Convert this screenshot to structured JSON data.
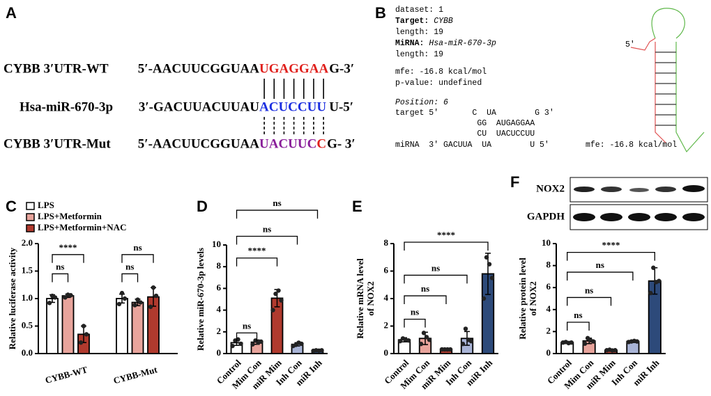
{
  "panel_labels": [
    "A",
    "B",
    "C",
    "D",
    "E",
    "F"
  ],
  "sequences": [
    {
      "name": "CYBB 3′UTR-WT",
      "parts": [
        "5′-AACUUCGGUAA",
        "UGAGGAA",
        "G-3′"
      ]
    },
    {
      "name": "Hsa-miR-670-3p",
      "parts": [
        "3′-GACUUACUUAU",
        "ACUCCUU",
        "U-5′"
      ]
    },
    {
      "name": "CYBB 3′UTR-Mut",
      "parts": [
        "5′-AACUUCGGUAA",
        "UACUUC",
        "C",
        "G- 3′"
      ]
    }
  ],
  "rnahybrid": {
    "dataset": "dataset: 1",
    "target_key": "Target:",
    "target": "CYBB",
    "length1": "length: 19",
    "mirna_key": "MiRNA:",
    "mirna": "Hsa-miR-670-3p",
    "length2": "length: 19",
    "mfe": "mfe: -16.8 kcal/mol",
    "pvalue": "p-value: undefined",
    "position": "Position: 6",
    "duplex": [
      "target 5'       C  UA        G 3'",
      "                 GG  AUGAGGAA",
      "                 CU  UACUCCUU",
      "miRNA  3' GACUUA  UA        U 5'"
    ],
    "structure_end": "5′",
    "structure_mfe": "mfe: -16.8 kcal/mol"
  },
  "blot": {
    "labels": [
      "NOX2",
      "GAPDH"
    ]
  },
  "chart_data": [
    {
      "type": "bar",
      "ylabel": [
        "Relative luciferase activity"
      ],
      "categories": [
        "CYBB-WT",
        "CYBB-Mut"
      ],
      "series": [
        {
          "name": "LPS",
          "color": "#ffffff",
          "values": [
            1.0,
            1.0
          ],
          "errors": [
            0.07,
            0.08
          ],
          "points": [
            [
              0.92,
              1.05,
              1.02
            ],
            [
              0.9,
              1.1,
              1.0
            ]
          ]
        },
        {
          "name": "LPS+Metformin",
          "color": "#e8a49c",
          "values": [
            1.05,
            0.93
          ],
          "errors": [
            0.03,
            0.06
          ],
          "points": [
            [
              1.02,
              1.07,
              1.06
            ],
            [
              0.88,
              0.98,
              0.93
            ]
          ]
        },
        {
          "name": "LPS+Metformin+NAC",
          "color": "#b03a2e",
          "values": [
            0.35,
            1.03
          ],
          "errors": [
            0.15,
            0.17
          ],
          "points": [
            [
              0.2,
              0.5,
              0.35
            ],
            [
              0.85,
              1.2,
              1.05
            ]
          ]
        }
      ],
      "ylim": [
        0,
        2
      ],
      "yticks": [
        {
          "value": 0,
          "label": "0.0"
        },
        {
          "value": 0.5,
          "label": "0.5"
        },
        {
          "value": 1,
          "label": "1.0"
        },
        {
          "value": 1.5,
          "label": "1.5"
        },
        {
          "value": 2,
          "label": "2.0"
        }
      ],
      "annotations": [
        {
          "label": "ns",
          "from": 0,
          "to": 1,
          "y": 1.45
        },
        {
          "label": "****",
          "from": 0,
          "to": 2,
          "y": 1.8
        },
        {
          "label": "ns",
          "from": 3,
          "to": 4,
          "y": 1.45
        },
        {
          "label": "ns",
          "from": 3,
          "to": 5,
          "y": 1.8
        }
      ]
    },
    {
      "type": "bar",
      "ylabel": [
        "Relative miR-670-3p levels"
      ],
      "categories": [
        "Control",
        "Mim Con",
        "miR Mim",
        "Inh Con",
        "miR Inh"
      ],
      "values": [
        1.0,
        1.05,
        5.1,
        0.85,
        0.28
      ],
      "errors": [
        0.25,
        0.2,
        0.8,
        0.15,
        0.05
      ],
      "points": [
        [
          0.7,
          1.2,
          1.3,
          0.9
        ],
        [
          0.85,
          1.2,
          1.0,
          1.1
        ],
        [
          4.0,
          5.5,
          5.8,
          4.9
        ],
        [
          0.7,
          0.8,
          1.0,
          0.9
        ],
        [
          0.25,
          0.3,
          0.27,
          0.3
        ]
      ],
      "colors": [
        "#ffffff",
        "#e8a49c",
        "#b03a2e",
        "#a9b4d6",
        "#2d4a7a"
      ],
      "ylim": [
        0,
        10
      ],
      "yticks": [
        0,
        2,
        4,
        6,
        8,
        10
      ],
      "annotations": [
        {
          "label": "ns",
          "from": 0,
          "to": 1,
          "y": 1.9
        },
        {
          "label": "****",
          "from": 0,
          "to": 2,
          "y": 8.8
        },
        {
          "label": "ns",
          "from": 0,
          "to": 3,
          "y": 10.8
        },
        {
          "label": "ns",
          "from": 0,
          "to": 4,
          "y": 13.2
        }
      ]
    },
    {
      "type": "bar",
      "ylabel": [
        "Relative mRNA level",
        "of NOX2"
      ],
      "categories": [
        "Control",
        "Mim Con",
        "miR Mim",
        "Inh Con",
        "miR Inh"
      ],
      "values": [
        1.0,
        1.1,
        0.3,
        1.1,
        5.8
      ],
      "errors": [
        0.15,
        0.45,
        0.05,
        0.5,
        1.5
      ],
      "points": [
        [
          0.9,
          1.1,
          1.0,
          0.95
        ],
        [
          0.7,
          1.5,
          1.2,
          1.0
        ],
        [
          0.3,
          0.3,
          0.3,
          0.3
        ],
        [
          0.7,
          1.8,
          1.0,
          0.9
        ],
        [
          4.0,
          7.0,
          6.5,
          5.5
        ]
      ],
      "colors": [
        "#ffffff",
        "#e8a49c",
        "#b03a2e",
        "#a9b4d6",
        "#2d4a7a"
      ],
      "ylim": [
        0,
        8
      ],
      "yticks": [
        0,
        2,
        4,
        6,
        8
      ],
      "annotations": [
        {
          "label": "ns",
          "from": 0,
          "to": 1,
          "y": 2.5
        },
        {
          "label": "ns",
          "from": 0,
          "to": 2,
          "y": 4.2
        },
        {
          "label": "ns",
          "from": 0,
          "to": 3,
          "y": 5.7
        },
        {
          "label": "****",
          "from": 0,
          "to": 4,
          "y": 8.1
        }
      ]
    },
    {
      "type": "bar",
      "ylabel": [
        "Relative protein level",
        "of NOX2"
      ],
      "categories": [
        "Control",
        "Mim Con",
        "miR Mim",
        "Inh Con",
        "miR Inh"
      ],
      "values": [
        1.0,
        1.15,
        0.3,
        1.1,
        6.6
      ],
      "errors": [
        0.1,
        0.25,
        0.05,
        0.1,
        1.2
      ],
      "points": [
        [
          1.0,
          1.05,
          0.95,
          1.0
        ],
        [
          0.9,
          1.4,
          1.2,
          1.1
        ],
        [
          0.3,
          0.35,
          0.28,
          0.3
        ],
        [
          1.05,
          1.1,
          1.15,
          1.1
        ],
        [
          5.5,
          7.8,
          6.5,
          6.6
        ]
      ],
      "colors": [
        "#ffffff",
        "#e8a49c",
        "#b03a2e",
        "#a9b4d6",
        "#2d4a7a"
      ],
      "ylim": [
        0,
        10
      ],
      "yticks": [
        0,
        2,
        4,
        6,
        8,
        10
      ],
      "annotations": [
        {
          "label": "ns",
          "from": 0,
          "to": 1,
          "y": 2.85
        },
        {
          "label": "ns",
          "from": 0,
          "to": 2,
          "y": 5.1
        },
        {
          "label": "ns",
          "from": 0,
          "to": 3,
          "y": 7.4
        },
        {
          "label": "****",
          "from": 0,
          "to": 4,
          "y": 9.2
        }
      ]
    }
  ]
}
